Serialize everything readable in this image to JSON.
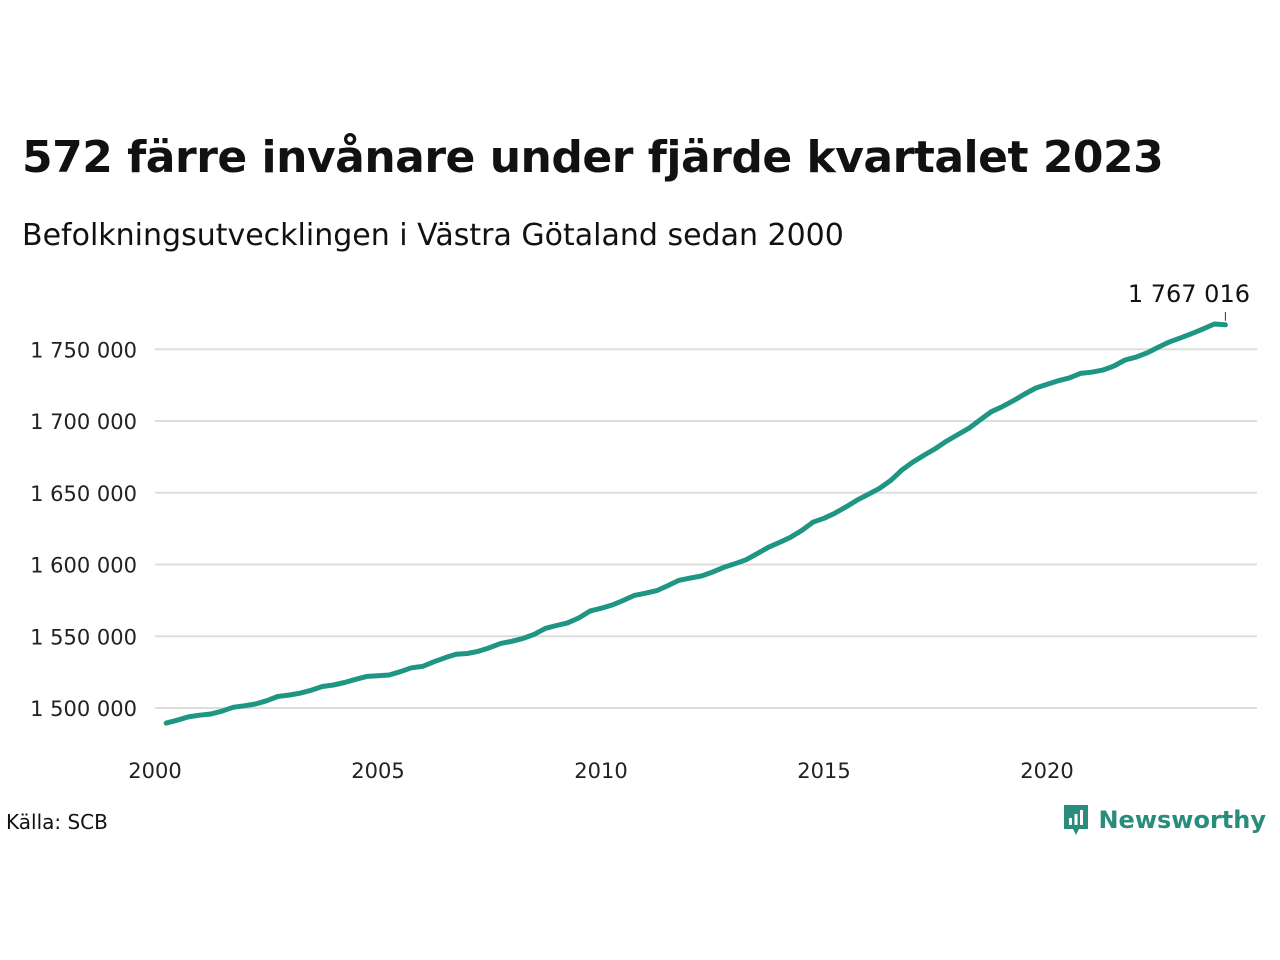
{
  "title": "572 färre invånare under fjärde kvartalet 2023",
  "subtitle": "Befolkningsutvecklingen i Västra Götaland sedan 2000",
  "source": "Källa: SCB",
  "brand": {
    "name": "Newsworthy",
    "icon": "newsworthy-logo-icon",
    "color": "#2a8c7c"
  },
  "chart_data": {
    "type": "line",
    "title": "572 färre invånare under fjärde kvartalet 2023",
    "subtitle": "Befolkningsutvecklingen i Västra Götaland sedan 2000",
    "xlabel": "",
    "ylabel": "",
    "xlim": [
      2000,
      2024.6
    ],
    "ylim": [
      1482000,
      1768000
    ],
    "x_ticks": [
      2000,
      2005,
      2010,
      2015,
      2020
    ],
    "x_tick_labels": [
      "2000",
      "2005",
      "2010",
      "2015",
      "2020"
    ],
    "y_ticks": [
      1500000,
      1550000,
      1600000,
      1650000,
      1700000,
      1750000
    ],
    "y_tick_labels": [
      "1 500 000",
      "1 550 000",
      "1 600 000",
      "1 650 000",
      "1 700 000",
      "1 750 000"
    ],
    "grid": "horizontal",
    "line_color": "#1e9683",
    "end_label": "1 767 016",
    "series": [
      {
        "x": [
          2000.25,
          2000.5,
          2000.75,
          2001.0,
          2001.25,
          2001.5,
          2001.75,
          2002.0,
          2002.25,
          2002.5,
          2002.75,
          2003.0,
          2003.25,
          2003.5,
          2003.75,
          2004.0,
          2004.25,
          2004.5,
          2004.75,
          2005.0,
          2005.25,
          2005.5,
          2005.75,
          2006.0,
          2006.25,
          2006.5,
          2006.75,
          2007.0,
          2007.25,
          2007.5,
          2007.75,
          2008.0,
          2008.25,
          2008.5,
          2008.75,
          2009.0,
          2009.25,
          2009.5,
          2009.75,
          2010.0,
          2010.25,
          2010.5,
          2010.75,
          2011.0,
          2011.25,
          2011.5,
          2011.75,
          2012.0,
          2012.25,
          2012.5,
          2012.75,
          2013.0,
          2013.25,
          2013.5,
          2013.75,
          2014.0,
          2014.25,
          2014.5,
          2014.75,
          2015.0,
          2015.25,
          2015.5,
          2015.75,
          2016.0,
          2016.25,
          2016.5,
          2016.75,
          2017.0,
          2017.25,
          2017.5,
          2017.75,
          2018.0,
          2018.25,
          2018.5,
          2018.75,
          2019.0,
          2019.25,
          2019.5,
          2019.75,
          2020.0,
          2020.25,
          2020.5,
          2020.75,
          2021.0,
          2021.25,
          2021.5,
          2021.75,
          2022.0,
          2022.25,
          2022.5,
          2022.75,
          2023.0,
          2023.25,
          2023.5,
          2023.75,
          2024.0
        ],
        "y": [
          1489500,
          1491500,
          1493800,
          1495000,
          1495800,
          1497800,
          1500500,
          1501500,
          1502800,
          1505000,
          1508000,
          1509000,
          1510300,
          1512300,
          1515000,
          1516000,
          1517800,
          1520000,
          1522000,
          1522500,
          1523000,
          1525300,
          1528000,
          1529000,
          1532200,
          1535000,
          1537500,
          1538000,
          1539500,
          1542000,
          1545000,
          1546500,
          1548500,
          1551300,
          1555500,
          1557500,
          1559300,
          1562700,
          1567500,
          1569500,
          1571800,
          1575000,
          1578500,
          1580000,
          1581800,
          1585300,
          1589000,
          1590500,
          1592000,
          1594700,
          1598000,
          1600500,
          1603300,
          1607500,
          1612000,
          1615300,
          1619000,
          1623700,
          1629500,
          1632200,
          1635800,
          1640300,
          1645000,
          1649000,
          1653200,
          1658700,
          1666000,
          1671500,
          1676300,
          1680800,
          1686000,
          1690500,
          1695000,
          1700800,
          1706500,
          1710000,
          1714200,
          1718800,
          1723000,
          1725500,
          1728000,
          1730000,
          1733200,
          1734000,
          1735500,
          1738300,
          1742500,
          1744500,
          1747500,
          1751500,
          1755200,
          1758000,
          1761000,
          1764200,
          1767600,
          1767016
        ]
      }
    ]
  }
}
